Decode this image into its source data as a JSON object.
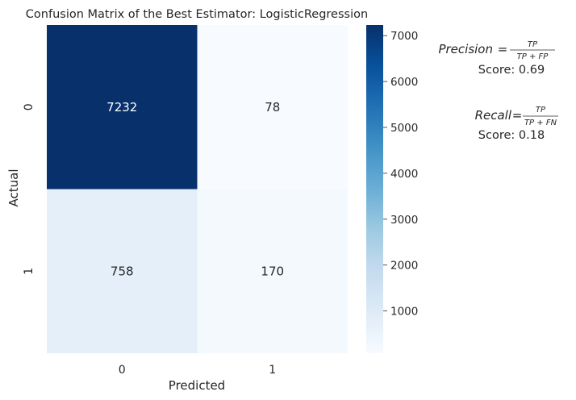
{
  "chart_data": {
    "type": "heatmap",
    "title": "Confusion Matrix of the Best Estimator: LogisticRegression",
    "xlabel": "Predicted",
    "ylabel": "Actual",
    "x_categories": [
      "0",
      "1"
    ],
    "y_categories": [
      "0",
      "1"
    ],
    "values": [
      [
        7232,
        78
      ],
      [
        758,
        170
      ]
    ],
    "colormap": "Blues",
    "colorbar": {
      "range": [
        78,
        7232
      ],
      "ticks": [
        1000,
        2000,
        3000,
        4000,
        5000,
        6000,
        7000
      ]
    }
  },
  "metrics": {
    "precision_label": "Precision",
    "precision_num": "TP",
    "precision_den": "TP + FP",
    "precision_score": "Score: 0.69",
    "recall_label": "Recall",
    "recall_num": "TP",
    "recall_den": "TP + FN",
    "recall_score": "Score: 0.18"
  }
}
